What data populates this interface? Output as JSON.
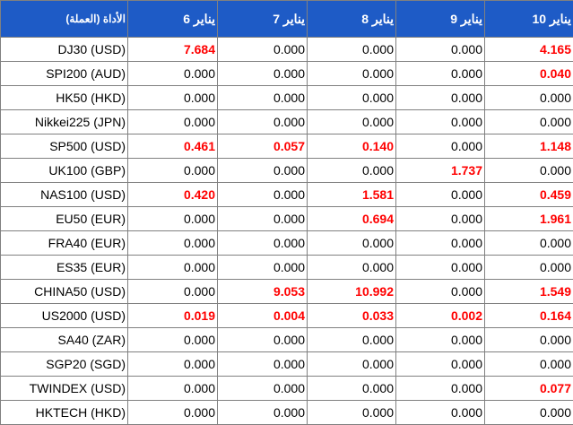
{
  "colors": {
    "header_background": "#1e5bc6",
    "header_text": "#ffffff",
    "highlight_text": "#ff0000",
    "border": "#808080"
  },
  "table": {
    "headers": [
      "(العملة) الأداة",
      "يناير 6",
      "يناير 7",
      "يناير 8",
      "يناير 9",
      "يناير 10"
    ],
    "rows": [
      {
        "instrument": "DJ30 (USD)",
        "values": [
          "7.684",
          "0.000",
          "0.000",
          "0.000",
          "4.165"
        ],
        "highlight": [
          true,
          false,
          false,
          false,
          true
        ]
      },
      {
        "instrument": "SPI200 (AUD)",
        "values": [
          "0.000",
          "0.000",
          "0.000",
          "0.000",
          "0.040"
        ],
        "highlight": [
          false,
          false,
          false,
          false,
          true
        ]
      },
      {
        "instrument": "HK50 (HKD)",
        "values": [
          "0.000",
          "0.000",
          "0.000",
          "0.000",
          "0.000"
        ],
        "highlight": [
          false,
          false,
          false,
          false,
          false
        ]
      },
      {
        "instrument": "Nikkei225 (JPN)",
        "values": [
          "0.000",
          "0.000",
          "0.000",
          "0.000",
          "0.000"
        ],
        "highlight": [
          false,
          false,
          false,
          false,
          false
        ]
      },
      {
        "instrument": "SP500 (USD)",
        "values": [
          "0.461",
          "0.057",
          "0.140",
          "0.000",
          "1.148"
        ],
        "highlight": [
          true,
          true,
          true,
          false,
          true
        ]
      },
      {
        "instrument": "UK100 (GBP)",
        "values": [
          "0.000",
          "0.000",
          "0.000",
          "1.737",
          "0.000"
        ],
        "highlight": [
          false,
          false,
          false,
          true,
          false
        ]
      },
      {
        "instrument": "NAS100 (USD)",
        "values": [
          "0.420",
          "0.000",
          "1.581",
          "0.000",
          "0.459"
        ],
        "highlight": [
          true,
          false,
          true,
          false,
          true
        ]
      },
      {
        "instrument": "EU50 (EUR)",
        "values": [
          "0.000",
          "0.000",
          "0.694",
          "0.000",
          "1.961"
        ],
        "highlight": [
          false,
          false,
          true,
          false,
          true
        ]
      },
      {
        "instrument": "FRA40 (EUR)",
        "values": [
          "0.000",
          "0.000",
          "0.000",
          "0.000",
          "0.000"
        ],
        "highlight": [
          false,
          false,
          false,
          false,
          false
        ]
      },
      {
        "instrument": "ES35 (EUR)",
        "values": [
          "0.000",
          "0.000",
          "0.000",
          "0.000",
          "0.000"
        ],
        "highlight": [
          false,
          false,
          false,
          false,
          false
        ]
      },
      {
        "instrument": "CHINA50 (USD)",
        "values": [
          "0.000",
          "9.053",
          "10.992",
          "0.000",
          "1.549"
        ],
        "highlight": [
          false,
          true,
          true,
          false,
          true
        ]
      },
      {
        "instrument": "US2000 (USD)",
        "values": [
          "0.019",
          "0.004",
          "0.033",
          "0.002",
          "0.164"
        ],
        "highlight": [
          true,
          true,
          true,
          true,
          true
        ]
      },
      {
        "instrument": "SA40 (ZAR)",
        "values": [
          "0.000",
          "0.000",
          "0.000",
          "0.000",
          "0.000"
        ],
        "highlight": [
          false,
          false,
          false,
          false,
          false
        ]
      },
      {
        "instrument": "SGP20 (SGD)",
        "values": [
          "0.000",
          "0.000",
          "0.000",
          "0.000",
          "0.000"
        ],
        "highlight": [
          false,
          false,
          false,
          false,
          false
        ]
      },
      {
        "instrument": "TWINDEX (USD)",
        "values": [
          "0.000",
          "0.000",
          "0.000",
          "0.000",
          "0.077"
        ],
        "highlight": [
          false,
          false,
          false,
          false,
          true
        ]
      },
      {
        "instrument": "HKTECH (HKD)",
        "values": [
          "0.000",
          "0.000",
          "0.000",
          "0.000",
          "0.000"
        ],
        "highlight": [
          false,
          false,
          false,
          false,
          false
        ]
      }
    ]
  }
}
